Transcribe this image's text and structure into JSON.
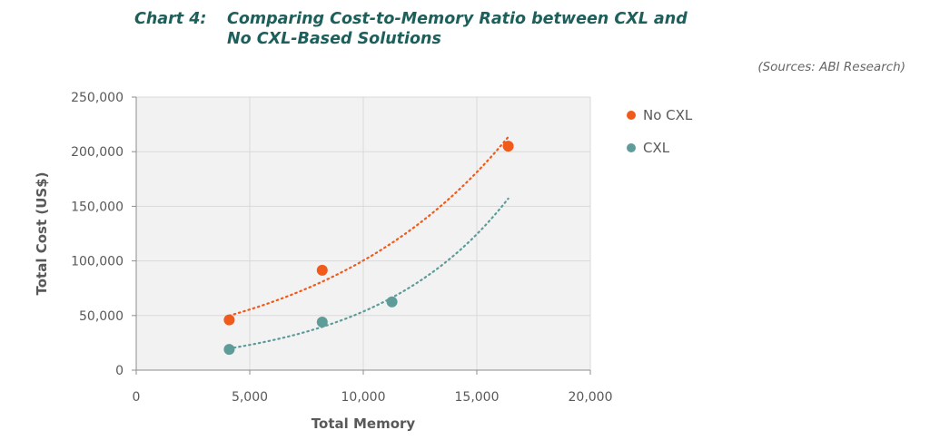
{
  "header": {
    "chart_number": "Chart 4:",
    "title": "Comparing Cost-to-Memory Ratio between CXL and No CXL-Based Solutions",
    "source": "(Sources: ABI Research)"
  },
  "colors": {
    "heading": "#1d5f5b",
    "plot_background": "#f2f2f2",
    "grid": "#d9d9d9",
    "axis_text": "#595959"
  },
  "chart_data": {
    "type": "scatter",
    "title": "Comparing Cost-to-Memory Ratio between CXL and No CXL-Based Solutions",
    "xlabel": "Total Memory",
    "ylabel": "Total Cost (US$)",
    "xlim": [
      0,
      20000
    ],
    "ylim": [
      0,
      250000
    ],
    "x_ticks": [
      0,
      5000,
      10000,
      15000,
      20000
    ],
    "y_ticks": [
      0,
      50000,
      100000,
      150000,
      200000,
      250000
    ],
    "x_tick_labels": [
      "0",
      "5,000",
      "10,000",
      "15,000",
      "20,000"
    ],
    "y_tick_labels": [
      "0",
      "50,000",
      "100,000",
      "150,000",
      "200,000",
      "250,000"
    ],
    "grid": true,
    "legend_position": "right",
    "trendline": "exponential, dotted",
    "series": [
      {
        "name": "No CXL",
        "color": "#f05a1a",
        "points": [
          {
            "x": 4096,
            "y": 46000
          },
          {
            "x": 8192,
            "y": 91500
          },
          {
            "x": 16384,
            "y": 205000
          }
        ],
        "trend_x_range": [
          4096,
          16384
        ]
      },
      {
        "name": "CXL",
        "color": "#5e9c99",
        "points": [
          {
            "x": 4096,
            "y": 19000
          },
          {
            "x": 8192,
            "y": 44000
          },
          {
            "x": 11264,
            "y": 62500
          }
        ],
        "trend_x_range": [
          4096,
          16384
        ]
      }
    ]
  }
}
